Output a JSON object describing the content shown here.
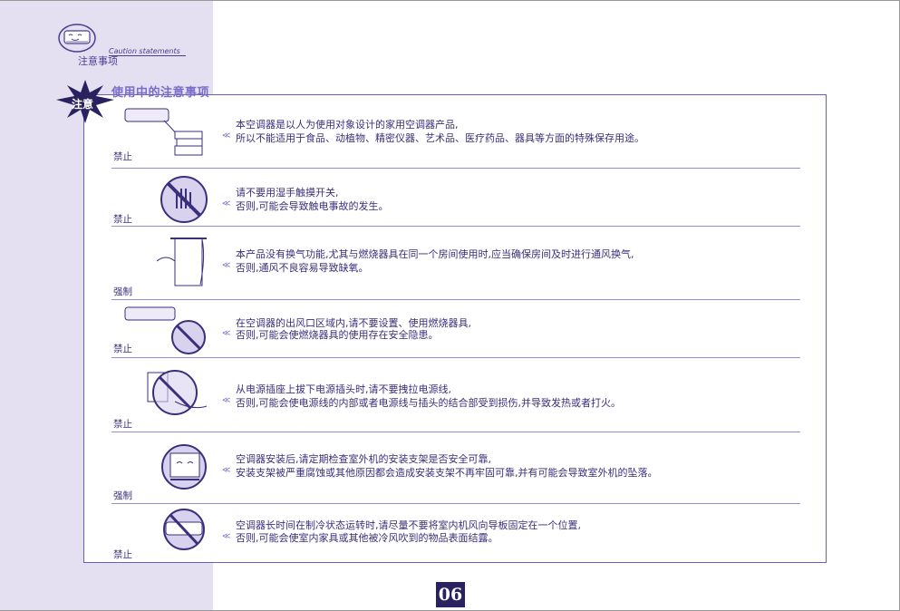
{
  "header": {
    "caution_en": "Caution statements",
    "caution_cn": "注意事项"
  },
  "section": {
    "title": "使用中的注意事项",
    "badge": "注意"
  },
  "items": [
    {
      "tag": "禁止",
      "icon": "ac-unit-with-boxes-icon",
      "line1": "本空调器是以人为使用对象设计的家用空调器产品,",
      "line2": "所以不能适用于食品、动植物、精密仪器、艺术品、医疗药品、器具等方面的特殊保存用途。"
    },
    {
      "tag": "禁止",
      "icon": "no-wet-hand-icon",
      "line1": "请不要用湿手触摸开关,",
      "line2": "否则,可能会导致触电事故的发生。"
    },
    {
      "tag": "强制",
      "icon": "open-window-icon",
      "line1": "本产品没有换气功能,尤其与燃烧器具在同一个房间使用时,应当确保房间及时进行通风换气,",
      "line2": "否则,通风不良容易导致缺氧。"
    },
    {
      "tag": "禁止",
      "icon": "no-heater-under-ac-icon",
      "line1": "在空调器的出风口区域内,请不要设置、使用燃烧器具,",
      "line2": "否则,可能会使燃烧器具的使用存在安全隐患。"
    },
    {
      "tag": "禁止",
      "icon": "no-pull-cord-icon",
      "line1": "从电源插座上拔下电源插头时,请不要拽拉电源线,",
      "line2": "否则,可能会使电源线的内部或者电源线与插头的结合部受到损伤,并导致发热或者打火。"
    },
    {
      "tag": "强制",
      "icon": "outdoor-unit-bracket-icon",
      "line1": "空调器安装后,请定期检查室外机的安装支架是否安全可靠,",
      "line2": "安装支架被严重腐蚀或其他原因都会造成安装支架不再牢固可靠,并有可能会导致室外机的坠落。"
    },
    {
      "tag": "禁止",
      "icon": "no-fixed-louver-icon",
      "line1": "空调器长时间在制冷状态运转时,请尽量不要将室内机风向导板固定在一个位置,",
      "line2": "否则,可能会使室内家具或其他被冷风吹到的物品表面结露。"
    }
  ],
  "item_marker": "≪",
  "page_number": "06"
}
